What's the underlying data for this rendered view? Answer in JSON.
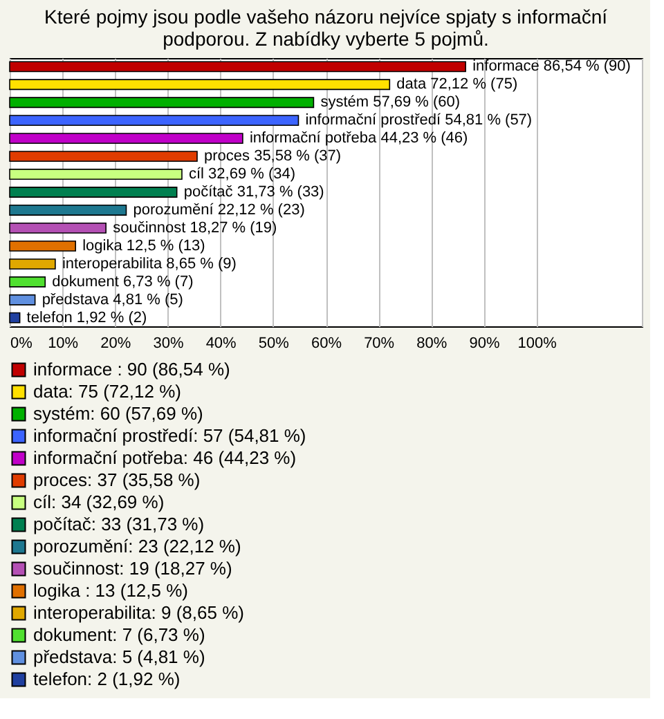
{
  "chart_data": {
    "type": "bar",
    "orientation": "horizontal",
    "title": [
      "Které pojmy jsou podle vašeho názoru nejvíce spjaty s informační",
      "podporou. Z nabídky vyberte 5 pojmů."
    ],
    "categories": [
      null,
      null,
      null,
      null,
      null,
      null,
      null,
      null,
      null,
      null,
      null,
      null,
      null,
      null,
      null
    ],
    "series": [
      {
        "name": "informace : 90 (86,54 %)",
        "color": "#c00000",
        "values": [
          86.54,
          null,
          null,
          null,
          null,
          null,
          null,
          null,
          null,
          null,
          null,
          null,
          null,
          null,
          null
        ],
        "value_labels": [
          "informace  86,54 % (90)",
          null,
          null,
          null,
          null,
          null,
          null,
          null,
          null,
          null,
          null,
          null,
          null,
          null,
          null
        ]
      },
      {
        "name": "data: 75 (72,12 %)",
        "color": "#ffe000",
        "values": [
          null,
          72.12,
          null,
          null,
          null,
          null,
          null,
          null,
          null,
          null,
          null,
          null,
          null,
          null,
          null
        ],
        "value_labels": [
          null,
          "data 72,12 % (75)",
          null,
          null,
          null,
          null,
          null,
          null,
          null,
          null,
          null,
          null,
          null,
          null,
          null
        ]
      },
      {
        "name": "systém: 60 (57,69 %)",
        "color": "#00b000",
        "values": [
          null,
          null,
          57.69,
          null,
          null,
          null,
          null,
          null,
          null,
          null,
          null,
          null,
          null,
          null,
          null
        ],
        "value_labels": [
          null,
          null,
          "systém 57,69 % (60)",
          null,
          null,
          null,
          null,
          null,
          null,
          null,
          null,
          null,
          null,
          null,
          null
        ]
      },
      {
        "name": "informační prostředí: 57 (54,81 %)",
        "color": "#3c64ff",
        "values": [
          null,
          null,
          null,
          54.81,
          null,
          null,
          null,
          null,
          null,
          null,
          null,
          null,
          null,
          null,
          null
        ],
        "value_labels": [
          null,
          null,
          null,
          "informační prostředí 54,81 % (57)",
          null,
          null,
          null,
          null,
          null,
          null,
          null,
          null,
          null,
          null,
          null
        ]
      },
      {
        "name": "informační potřeba: 46 (44,23 %)",
        "color": "#c000c8",
        "values": [
          null,
          null,
          null,
          null,
          44.23,
          null,
          null,
          null,
          null,
          null,
          null,
          null,
          null,
          null,
          null
        ],
        "value_labels": [
          null,
          null,
          null,
          null,
          "informační potřeba 44,23 % (46)",
          null,
          null,
          null,
          null,
          null,
          null,
          null,
          null,
          null,
          null
        ]
      },
      {
        "name": "proces: 37 (35,58 %)",
        "color": "#e03c00",
        "values": [
          null,
          null,
          null,
          null,
          null,
          35.58,
          null,
          null,
          null,
          null,
          null,
          null,
          null,
          null,
          null
        ],
        "value_labels": [
          null,
          null,
          null,
          null,
          null,
          "proces 35,58 % (37)",
          null,
          null,
          null,
          null,
          null,
          null,
          null,
          null,
          null
        ]
      },
      {
        "name": "cíl: 34 (32,69 %)",
        "color": "#c8ff80",
        "values": [
          null,
          null,
          null,
          null,
          null,
          null,
          32.69,
          null,
          null,
          null,
          null,
          null,
          null,
          null,
          null
        ],
        "value_labels": [
          null,
          null,
          null,
          null,
          null,
          null,
          "cíl 32,69 % (34)",
          null,
          null,
          null,
          null,
          null,
          null,
          null,
          null
        ]
      },
      {
        "name": "počítač: 33 (31,73 %)",
        "color": "#008050",
        "values": [
          null,
          null,
          null,
          null,
          null,
          null,
          null,
          31.73,
          null,
          null,
          null,
          null,
          null,
          null,
          null
        ],
        "value_labels": [
          null,
          null,
          null,
          null,
          null,
          null,
          null,
          "počítač 31,73 % (33)",
          null,
          null,
          null,
          null,
          null,
          null,
          null
        ]
      },
      {
        "name": "porozumění: 23 (22,12 %)",
        "color": "#1e7890",
        "values": [
          null,
          null,
          null,
          null,
          null,
          null,
          null,
          null,
          22.12,
          null,
          null,
          null,
          null,
          null,
          null
        ],
        "value_labels": [
          null,
          null,
          null,
          null,
          null,
          null,
          null,
          null,
          "porozumění 22,12 % (23)",
          null,
          null,
          null,
          null,
          null,
          null
        ]
      },
      {
        "name": "součinnost: 19 (18,27 %)",
        "color": "#b450b4",
        "values": [
          null,
          null,
          null,
          null,
          null,
          null,
          null,
          null,
          null,
          18.27,
          null,
          null,
          null,
          null,
          null
        ],
        "value_labels": [
          null,
          null,
          null,
          null,
          null,
          null,
          null,
          null,
          null,
          "součinnost 18,27 % (19)",
          null,
          null,
          null,
          null,
          null
        ]
      },
      {
        "name": "logika : 13 (12,5 %)",
        "color": "#e07000",
        "values": [
          null,
          null,
          null,
          null,
          null,
          null,
          null,
          null,
          null,
          null,
          12.5,
          null,
          null,
          null,
          null
        ],
        "value_labels": [
          null,
          null,
          null,
          null,
          null,
          null,
          null,
          null,
          null,
          null,
          "logika  12,5 % (13)",
          null,
          null,
          null,
          null
        ]
      },
      {
        "name": "interoperabilita: 9 (8,65 %)",
        "color": "#e0a800",
        "values": [
          null,
          null,
          null,
          null,
          null,
          null,
          null,
          null,
          null,
          null,
          null,
          8.65,
          null,
          null,
          null
        ],
        "value_labels": [
          null,
          null,
          null,
          null,
          null,
          null,
          null,
          null,
          null,
          null,
          null,
          "interoperabilita 8,65 % (9)",
          null,
          null,
          null
        ]
      },
      {
        "name": "dokument: 7 (6,73 %)",
        "color": "#50e030",
        "values": [
          null,
          null,
          null,
          null,
          null,
          null,
          null,
          null,
          null,
          null,
          null,
          null,
          6.73,
          null,
          null
        ],
        "value_labels": [
          null,
          null,
          null,
          null,
          null,
          null,
          null,
          null,
          null,
          null,
          null,
          null,
          "dokument 6,73 % (7)",
          null,
          null
        ]
      },
      {
        "name": "představa: 5 (4,81 %)",
        "color": "#6090e0",
        "values": [
          null,
          null,
          null,
          null,
          null,
          null,
          null,
          null,
          null,
          null,
          null,
          null,
          null,
          4.81,
          null
        ],
        "value_labels": [
          null,
          null,
          null,
          null,
          null,
          null,
          null,
          null,
          null,
          null,
          null,
          null,
          null,
          "představa 4,81 % (5)",
          null
        ]
      },
      {
        "name": "telefon: 2 (1,92 %)",
        "color": "#2040a0",
        "values": [
          null,
          null,
          null,
          null,
          null,
          null,
          null,
          null,
          null,
          null,
          null,
          null,
          null,
          null,
          1.92
        ],
        "value_labels": [
          null,
          null,
          null,
          null,
          null,
          null,
          null,
          null,
          null,
          null,
          null,
          null,
          null,
          null,
          "telefon 1,92 % (2)"
        ]
      }
    ],
    "xlim": [
      0,
      120
    ],
    "xticks": [
      {
        "value": 0,
        "label": "0%"
      },
      {
        "value": 10,
        "label": "10%"
      },
      {
        "value": 20,
        "label": "20%"
      },
      {
        "value": 30,
        "label": "30%"
      },
      {
        "value": 40,
        "label": "40%"
      },
      {
        "value": 50,
        "label": "50%"
      },
      {
        "value": 60,
        "label": "60%"
      },
      {
        "value": 70,
        "label": "70%"
      },
      {
        "value": 80,
        "label": "80%"
      },
      {
        "value": 90,
        "label": "90%"
      },
      {
        "value": 100,
        "label": "100%"
      },
      {
        "value": 120,
        "label": null
      }
    ],
    "grid": "x",
    "tick_labels": "x",
    "legend": "bottom"
  }
}
